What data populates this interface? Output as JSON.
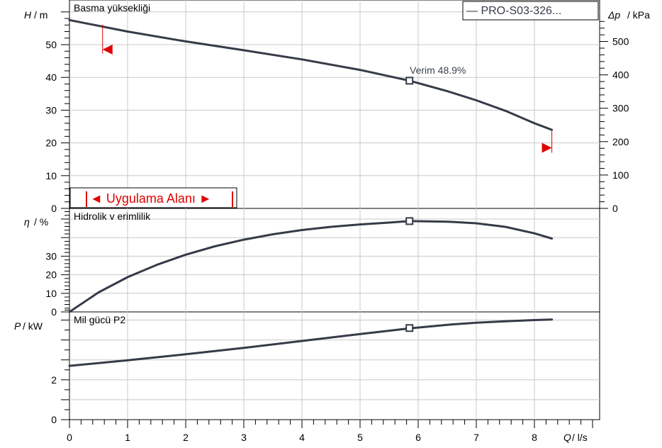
{
  "chart_data": [
    {
      "panel": "head",
      "type": "line",
      "title": "Basma yükseklliği",
      "title_display": "Basma yüksekliği",
      "ylabel": "H / m",
      "ylabel_var": "H",
      "ylabel_unit": "/  m",
      "y2label_var": "Δp",
      "y2label_unit": "/ kPa",
      "ylim": [
        0,
        60
      ],
      "yticks": [
        0,
        10,
        20,
        30,
        40,
        50
      ],
      "y2ticks": [
        0,
        100,
        200,
        300,
        400,
        500
      ],
      "legend": {
        "entry": "— PRO-S03-326...",
        "placement": "top-right"
      },
      "series": [
        {
          "name": "PRO-S03-326...",
          "color": "#353b48",
          "x": [
            0,
            1,
            2,
            3,
            4,
            5,
            5.85,
            6.5,
            7,
            7.5,
            8,
            8.3
          ],
          "y": [
            57.5,
            54,
            51,
            48.3,
            45.5,
            42.3,
            39,
            35.8,
            33,
            29.8,
            26,
            24
          ]
        }
      ],
      "duty_point": {
        "x": 5.85,
        "y": 39,
        "label": "Verim  48.9%"
      },
      "range_markers": {
        "left_x": 0.57,
        "left_y": 48.5,
        "right_x": 8.3,
        "right_y": 18.5,
        "color": "#e00000"
      },
      "operating_range_label": "◄ Uygulama Alanı ►"
    },
    {
      "panel": "efficiency",
      "type": "line",
      "title": "Hidrolik verimlilik",
      "title_display": "Hidrolik v erimlilik",
      "ylabel": "η / %",
      "ylabel_var": "η",
      "ylabel_unit": "/  %",
      "ylim": [
        0,
        55
      ],
      "yticks": [
        0,
        10,
        20,
        30
      ],
      "series": [
        {
          "name": "PRO-S03-326...",
          "color": "#353b48",
          "x": [
            0,
            0.5,
            1,
            1.5,
            2,
            2.5,
            3,
            3.5,
            4,
            4.5,
            5,
            5.5,
            5.85,
            6.5,
            7,
            7.5,
            8,
            8.3
          ],
          "y": [
            0,
            10.5,
            18.7,
            25.3,
            30.8,
            35.3,
            38.9,
            41.8,
            44.1,
            45.8,
            47.1,
            48.1,
            48.9,
            48.6,
            47.7,
            45.8,
            42.3,
            39.5
          ]
        }
      ],
      "duty_point": {
        "x": 5.85,
        "y": 48.9
      }
    },
    {
      "panel": "power",
      "type": "line",
      "title": "Mil gücü P2",
      "ylabel": "P / kW",
      "ylabel_var": "P",
      "ylabel_unit": " /  kW",
      "xlabel": "Q / l/s",
      "xlabel_var": "Q",
      "xlabel_unit": " /  l/s",
      "xlim": [
        0,
        9
      ],
      "xticks": [
        0,
        1,
        2,
        3,
        4,
        5,
        6,
        7,
        8
      ],
      "ylim": [
        0,
        5.6
      ],
      "yticks": [
        0,
        2
      ],
      "series": [
        {
          "name": "PRO-S03-326...",
          "color": "#353b48",
          "x": [
            0,
            1,
            2,
            3,
            4,
            5,
            5.85,
            6.5,
            7,
            7.5,
            8,
            8.3
          ],
          "y": [
            2.7,
            2.98,
            3.28,
            3.6,
            3.95,
            4.3,
            4.58,
            4.76,
            4.87,
            4.94,
            5.0,
            5.03
          ]
        }
      ],
      "duty_point": {
        "x": 5.85,
        "y": 4.6
      }
    }
  ]
}
